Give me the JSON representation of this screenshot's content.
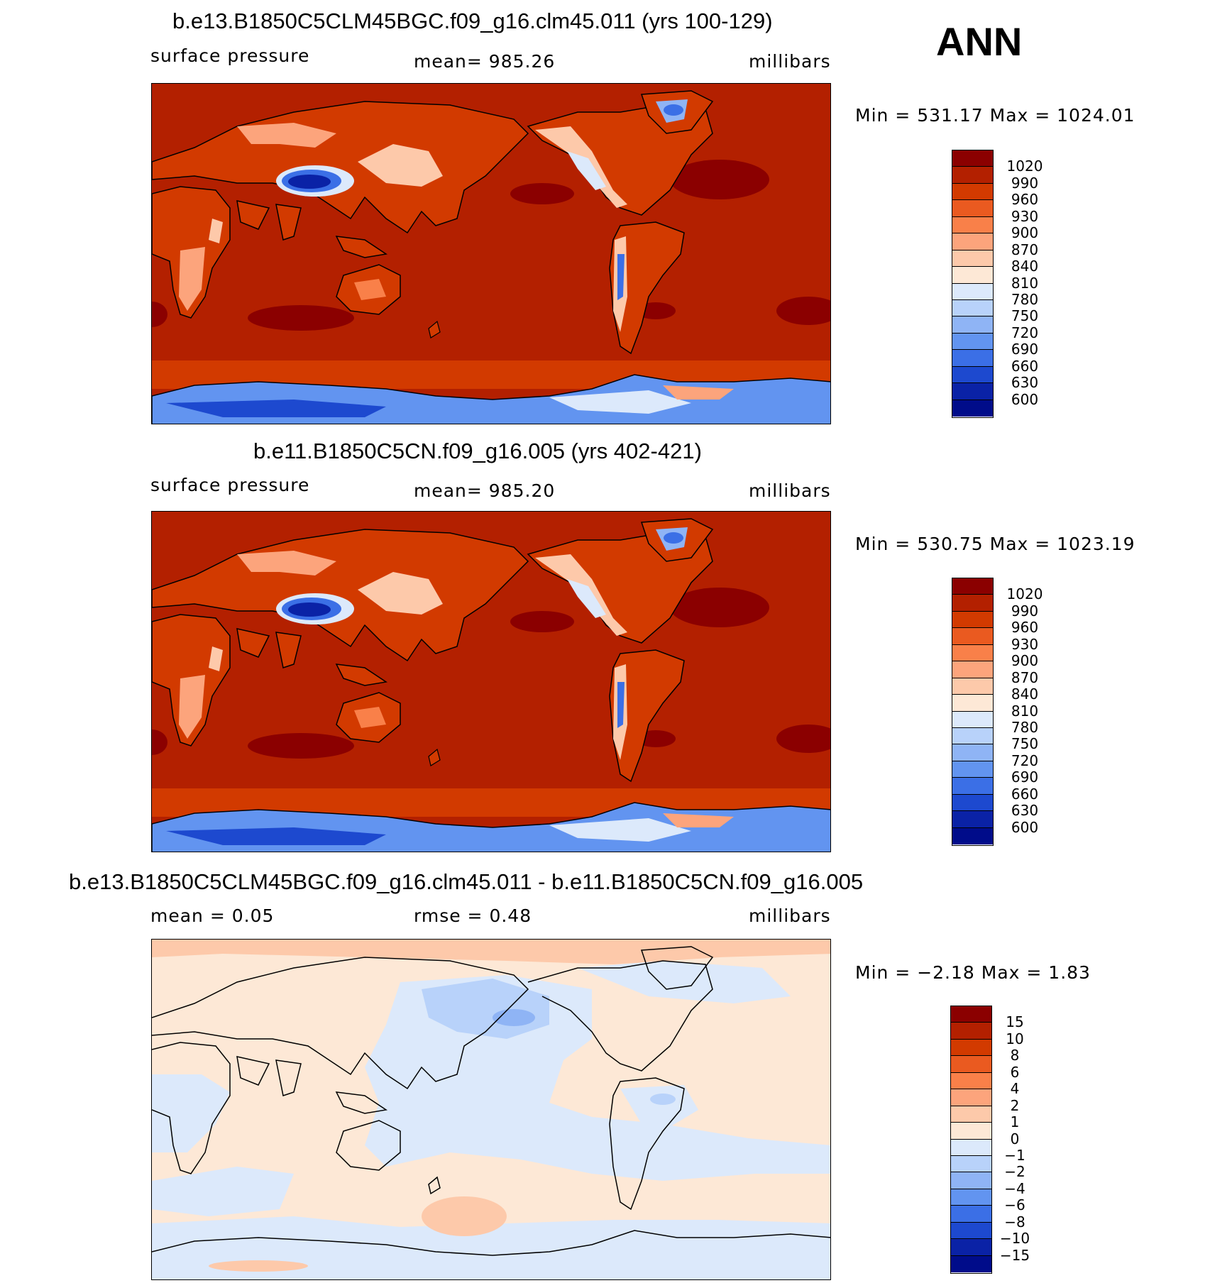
{
  "season": "ANN",
  "panels": [
    {
      "title": "b.e13.B1850C5CLM45BGC.f09_g16.clm45.011 (yrs 100-129)",
      "left_label": "surface pressure",
      "center_label": "mean=  985.26",
      "units": "millibars",
      "minmax": "Min  =  531.17  Max  =  1024.01"
    },
    {
      "title": "b.e11.B1850C5CN.f09_g16.005 (yrs 402-421)",
      "left_label": "surface pressure",
      "center_label": "mean=  985.20",
      "units": "millibars",
      "minmax": "Min  =  530.75  Max  =  1023.19"
    },
    {
      "title": "b.e13.B1850C5CLM45BGC.f09_g16.clm45.011 - b.e11.B1850C5CN.f09_g16.005",
      "left_label": "mean  =     0.05",
      "center_label": "rmse  =     0.48",
      "units": "millibars",
      "minmax": "Min  =    −2.18  Max  =      1.83"
    }
  ],
  "colorbars": {
    "field": {
      "labels": [
        "1020",
        "990",
        "960",
        "930",
        "900",
        "870",
        "840",
        "810",
        "780",
        "750",
        "720",
        "690",
        "660",
        "630",
        "600"
      ],
      "colors": [
        "#8b0000",
        "#b32000",
        "#d23a00",
        "#ea5a20",
        "#f98049",
        "#fca47c",
        "#fdc9aa",
        "#fde8d6",
        "#dce9fb",
        "#b8d2fa",
        "#8fb4f5",
        "#6294f0",
        "#3b6fe6",
        "#1d49cf",
        "#0a22a6",
        "#000c8a"
      ]
    },
    "diff": {
      "labels": [
        "15",
        "10",
        "8",
        "6",
        "4",
        "2",
        "1",
        "0",
        "−1",
        "−2",
        "−4",
        "−6",
        "−8",
        "−10",
        "−15"
      ],
      "colors": [
        "#8b0000",
        "#b32000",
        "#d23a00",
        "#ea5a20",
        "#f98049",
        "#fca47c",
        "#fdc9aa",
        "#fde8d6",
        "#dce9fb",
        "#b8d2fa",
        "#8fb4f5",
        "#6294f0",
        "#3b6fe6",
        "#1d49cf",
        "#0a22a6",
        "#000c8a"
      ]
    }
  },
  "map_colors": {
    "ocean": "#b32000",
    "land": "#d23a00",
    "highs": "#8b0000",
    "antarctic_ice": "#3b6fe6",
    "plateau": "#0a22a6",
    "mid_elev": "#fca47c",
    "diff_bg": "#fde8d6",
    "diff_neg": "#dce9fb",
    "diff_neg2": "#b8d2fa",
    "diff_pos": "#fdc9aa"
  }
}
